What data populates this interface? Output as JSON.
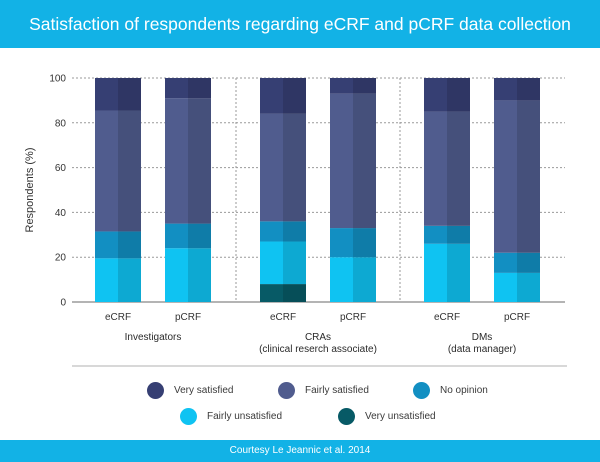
{
  "header": {
    "title": "Satisfaction of respondents regarding eCRF and pCRF data collection"
  },
  "footer": {
    "text": "Courtesy Le Jeannic et al. 2014"
  },
  "colors": {
    "header_bg": "#12b2e6",
    "very_satisfied": "#363f73",
    "fairly_satisfied": "#505c8e",
    "no_opinion": "#128fc2",
    "fairly_unsatisfied": "#0fc3f2",
    "very_unsatisfied": "#075a66"
  },
  "chart_data": {
    "type": "bar",
    "stacked": true,
    "ylabel": "Respondents (%)",
    "ylim": [
      0,
      100
    ],
    "yticks": [
      0,
      20,
      40,
      60,
      80,
      100
    ],
    "grid": true,
    "groups": [
      {
        "label": "Investigators",
        "sublabel": "",
        "categories": [
          "eCRF",
          "pCRF"
        ]
      },
      {
        "label": "CRAs",
        "sublabel": "(clinical reserch associate)",
        "categories": [
          "eCRF",
          "pCRF"
        ]
      },
      {
        "label": "DMs",
        "sublabel": "(data manager)",
        "categories": [
          "eCRF",
          "pCRF"
        ]
      }
    ],
    "series": [
      {
        "name": "Very unsatisfied",
        "values": [
          0,
          0,
          8,
          0,
          0,
          0
        ]
      },
      {
        "name": "Fairly unsatisfied",
        "values": [
          19.5,
          24,
          19,
          20,
          26,
          13
        ]
      },
      {
        "name": "No opinion",
        "values": [
          12,
          11,
          9,
          13,
          8,
          9
        ]
      },
      {
        "name": "Fairly satisfied",
        "values": [
          54,
          56,
          48,
          60,
          51,
          68
        ]
      },
      {
        "name": "Very satisfied",
        "values": [
          14.5,
          9,
          16,
          7,
          15,
          10
        ]
      }
    ],
    "legend": {
      "placement": "bottom",
      "items": [
        "Very satisfied",
        "Fairly satisfied",
        "No opinion",
        "Fairly unsatisfied",
        "Very unsatisfied"
      ]
    }
  }
}
